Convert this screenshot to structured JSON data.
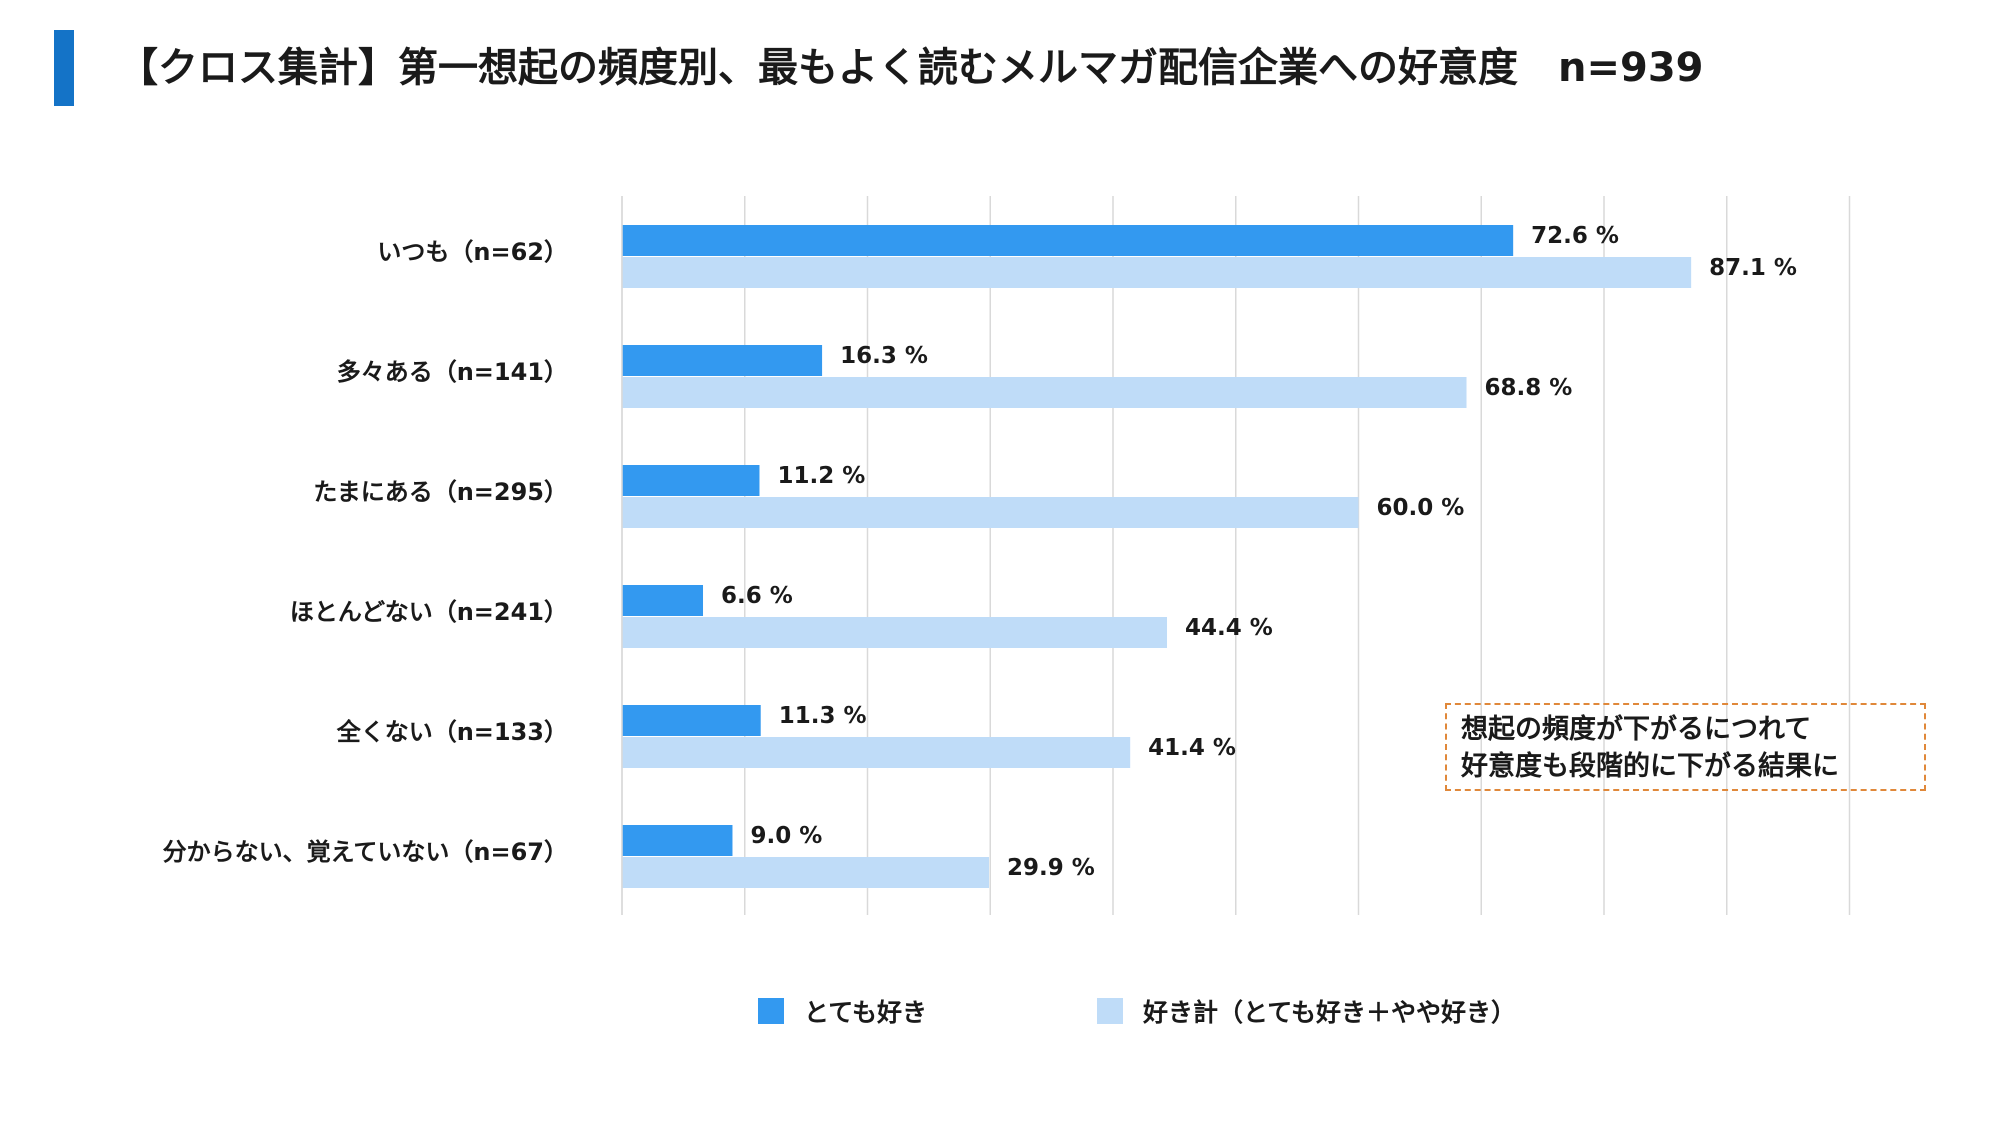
{
  "page": {
    "title": "【クロス集計】第一想起の頻度別、最もよく読むメルマガ配信企業への好意度　n=939",
    "accent_color": "#1473c7"
  },
  "chart_data": {
    "type": "bar",
    "orientation": "horizontal",
    "categories": [
      "いつも（n=62）",
      "多々ある（n=141）",
      "たまにある（n=295）",
      "ほとんどない（n=241）",
      "全くない（n=133）",
      "分からない、覚えていない（n=67）"
    ],
    "series": [
      {
        "name": "とても好き",
        "color": "#3399f0",
        "values": [
          72.6,
          16.3,
          11.2,
          6.6,
          11.3,
          9.0
        ],
        "labels": [
          "72.6 %",
          "16.3 %",
          "11.2 %",
          "6.6 %",
          "11.3 %",
          "9.0 %"
        ]
      },
      {
        "name": "好き計（とても好き＋やや好き）",
        "color": "#bfdcf8",
        "values": [
          87.1,
          68.8,
          60.0,
          44.4,
          41.4,
          29.9
        ],
        "labels": [
          "87.1 %",
          "68.8 %",
          "60.0 %",
          "44.4 %",
          "41.4 %",
          "29.9 %"
        ]
      }
    ],
    "xlim": [
      0,
      100
    ],
    "grid": true,
    "legend_position": "bottom",
    "annotation": {
      "line1": "想起の頻度が下がるにつれて",
      "line2": "好意度も段階的に下がる結果に",
      "border_color": "#e0883a"
    }
  }
}
